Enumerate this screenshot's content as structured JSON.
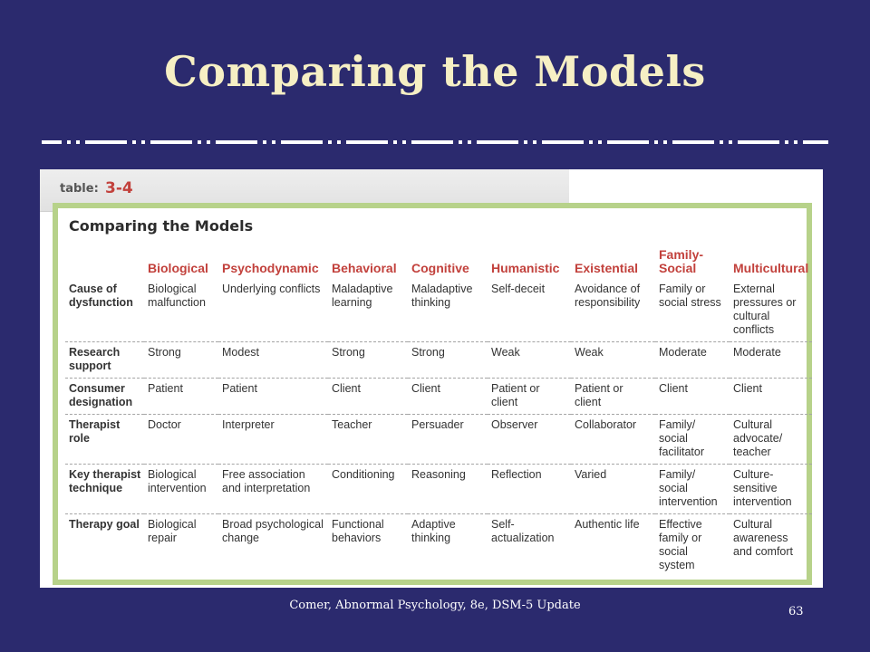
{
  "slide": {
    "title": "Comparing the Models",
    "footer": "Comer, Abnormal Psychology, 8e, DSM-5 Update",
    "page_number": "63"
  },
  "table": {
    "tab_label": "table:",
    "tab_number": "3-4",
    "heading": "Comparing the Models",
    "columns": [
      "",
      "Biological",
      "Psychodynamic",
      "Behavioral",
      "Cognitive",
      "Humanistic",
      "Existential",
      "Family-Social",
      "Multicultural"
    ],
    "rows": [
      [
        "Cause of dysfunction",
        "Biological malfunction",
        "Underlying conflicts",
        "Maladaptive learning",
        "Maladaptive thinking",
        "Self-deceit",
        "Avoidance of responsibility",
        "Family or social stress",
        "External pressures or cultural conflicts"
      ],
      [
        "Research support",
        "Strong",
        "Modest",
        "Strong",
        "Strong",
        "Weak",
        "Weak",
        "Moderate",
        "Moderate"
      ],
      [
        "Consumer designation",
        "Patient",
        "Patient",
        "Client",
        "Client",
        "Patient or client",
        "Patient or client",
        "Client",
        "Client"
      ],
      [
        "Therapist role",
        "Doctor",
        "Interpreter",
        "Teacher",
        "Persuader",
        "Observer",
        "Collaborator",
        "Family/ social facilitator",
        "Cultural advocate/ teacher"
      ],
      [
        "Key therapist technique",
        "Biological intervention",
        "Free association and interpretation",
        "Conditioning",
        "Reasoning",
        "Reflection",
        "Varied",
        "Family/ social intervention",
        "Culture-sensitive intervention"
      ],
      [
        "Therapy goal",
        "Biological repair",
        "Broad psychological change",
        "Functional behaviors",
        "Adaptive thinking",
        "Self-actualization",
        "Authentic life",
        "Effective family or social system",
        "Cultural awareness and comfort"
      ]
    ]
  },
  "colors": {
    "background": "#2b2a6e",
    "title": "#f6efc4",
    "header_red": "#c2413c",
    "frame_green": "#b7d28a"
  }
}
